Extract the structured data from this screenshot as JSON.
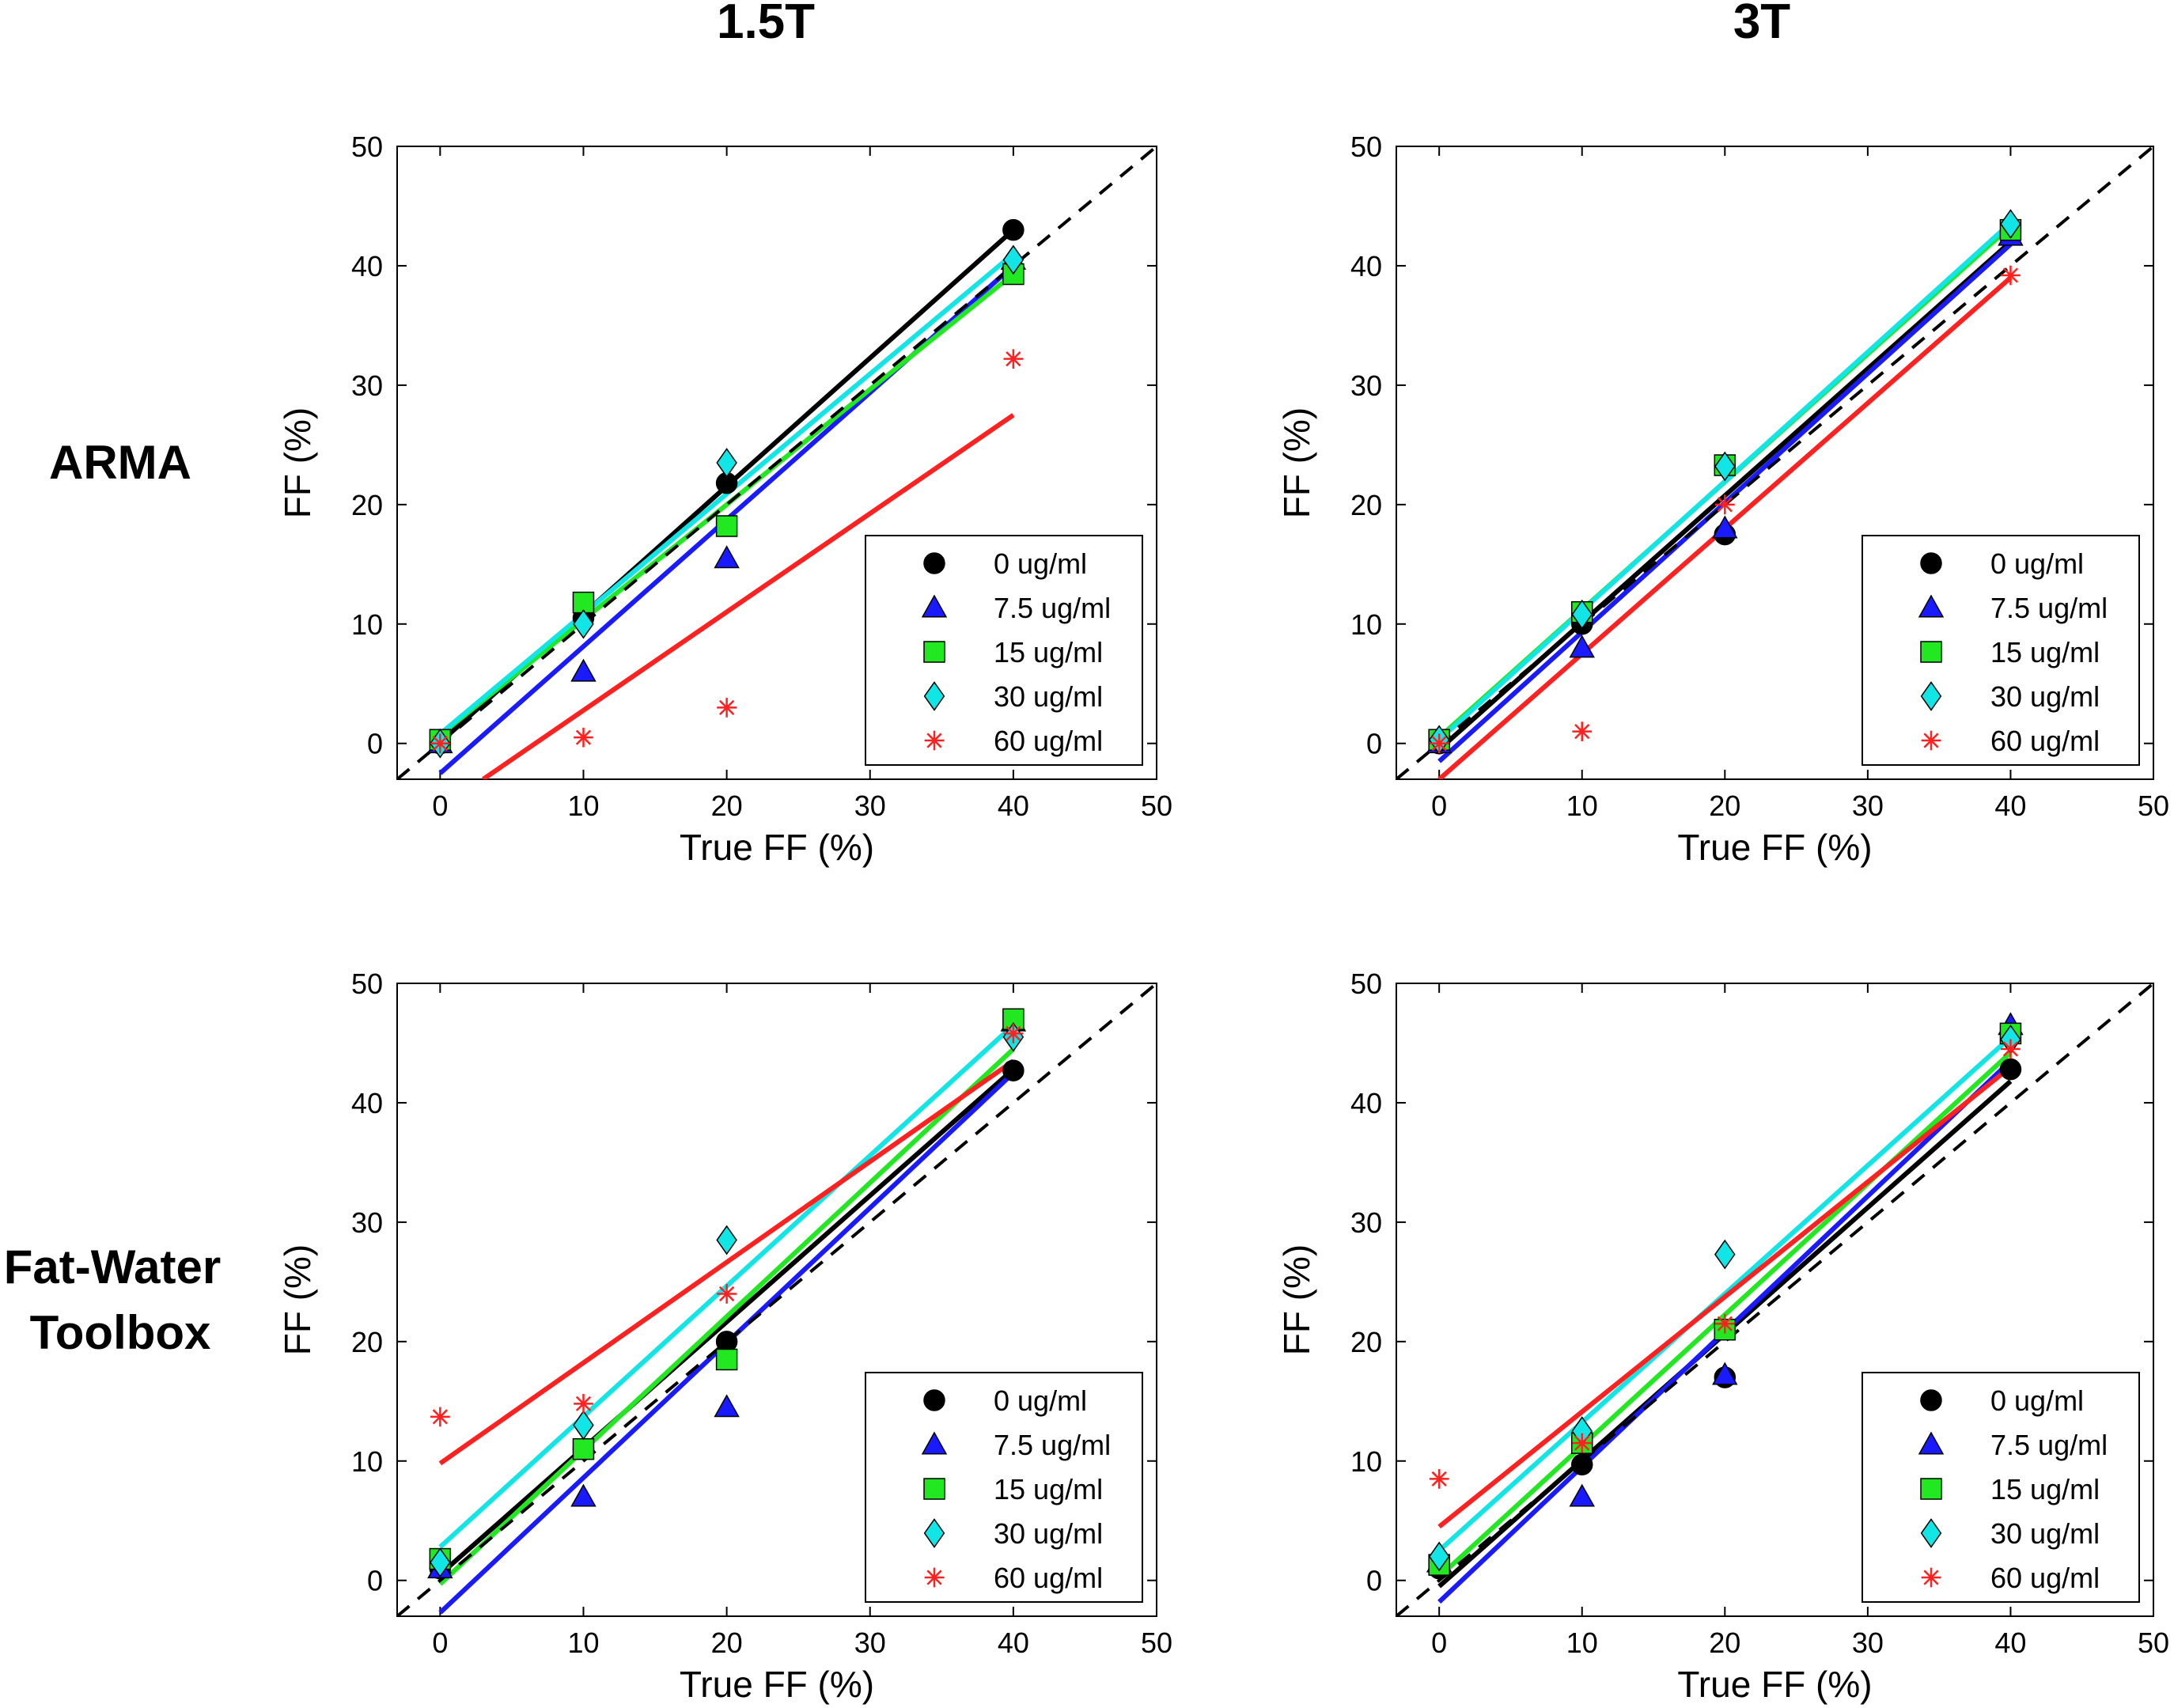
{
  "column_titles": [
    "1.5T",
    "3T"
  ],
  "row_titles": [
    [
      "ARMA"
    ],
    [
      "Fat-Water",
      "Toolbox"
    ]
  ],
  "colors": {
    "0 ug/ml": "#000000",
    "7.5 ug/ml": "#1a1aff",
    "15 ug/ml": "#22e822",
    "30 ug/ml": "#11e5e5",
    "60 ug/ml": "#ff2020",
    "identity": "#000000"
  },
  "chart_data": [
    {
      "id": "arma-1.5T",
      "type": "scatter",
      "row": "ARMA",
      "column": "1.5T",
      "title": "",
      "xlabel": "True FF (%)",
      "ylabel": "FF (%)",
      "xlim": [
        -3,
        50
      ],
      "ylim": [
        -3,
        50
      ],
      "xticks": [
        0,
        10,
        20,
        30,
        40,
        50
      ],
      "yticks": [
        0,
        10,
        20,
        30,
        40,
        50
      ],
      "identity_line": true,
      "legend_position": "bottom-right",
      "series": [
        {
          "name": "0 ug/ml",
          "marker": "circle",
          "x": [
            0,
            10,
            20,
            40
          ],
          "y": [
            0,
            10.5,
            21.8,
            43
          ],
          "fit": [
            [
              0,
              0.1
            ],
            [
              40,
              43
            ]
          ]
        },
        {
          "name": "7.5 ug/ml",
          "marker": "triangle",
          "x": [
            0,
            10,
            20,
            40
          ],
          "y": [
            0,
            6,
            15.5,
            40.5
          ],
          "fit": [
            [
              0,
              -2.5
            ],
            [
              40,
              40
            ]
          ]
        },
        {
          "name": "15 ug/ml",
          "marker": "square",
          "x": [
            0,
            10,
            20,
            40
          ],
          "y": [
            0.3,
            11.8,
            18.2,
            39.3
          ],
          "fit": [
            [
              0,
              0.7
            ],
            [
              40,
              39.3
            ]
          ]
        },
        {
          "name": "30 ug/ml",
          "marker": "diamond",
          "x": [
            0,
            10,
            20,
            40
          ],
          "y": [
            0,
            10,
            23.5,
            40.5
          ],
          "fit": [
            [
              0,
              0.8
            ],
            [
              40,
              41
            ]
          ]
        },
        {
          "name": "60 ug/ml",
          "marker": "star",
          "x": [
            0,
            10,
            20,
            40
          ],
          "y": [
            0,
            0.5,
            3,
            32.2
          ],
          "fit": [
            [
              3,
              -3
            ],
            [
              40,
              27.5
            ]
          ]
        }
      ]
    },
    {
      "id": "arma-3T",
      "type": "scatter",
      "row": "ARMA",
      "column": "3T",
      "title": "",
      "xlabel": "True FF (%)",
      "ylabel": "FF (%)",
      "xlim": [
        -3,
        50
      ],
      "ylim": [
        -3,
        50
      ],
      "xticks": [
        0,
        10,
        20,
        30,
        40,
        50
      ],
      "yticks": [
        0,
        10,
        20,
        30,
        40,
        50
      ],
      "identity_line": true,
      "legend_position": "bottom-right",
      "series": [
        {
          "name": "0 ug/ml",
          "marker": "circle",
          "x": [
            0,
            10,
            20,
            40
          ],
          "y": [
            0,
            10,
            17.5,
            42.8
          ],
          "fit": [
            [
              0,
              -0.5
            ],
            [
              40,
              42
            ]
          ]
        },
        {
          "name": "7.5 ug/ml",
          "marker": "triangle",
          "x": [
            0,
            10,
            20,
            40
          ],
          "y": [
            0,
            8,
            18,
            42.5
          ],
          "fit": [
            [
              0,
              -1.5
            ],
            [
              40,
              41.8
            ]
          ]
        },
        {
          "name": "15 ug/ml",
          "marker": "square",
          "x": [
            0,
            10,
            20,
            40
          ],
          "y": [
            0.3,
            11,
            23.3,
            43
          ],
          "fit": [
            [
              0,
              0.5
            ],
            [
              40,
              43.3
            ]
          ]
        },
        {
          "name": "30 ug/ml",
          "marker": "diamond",
          "x": [
            0,
            10,
            20,
            40
          ],
          "y": [
            0.3,
            10.8,
            23.2,
            43.5
          ],
          "fit": [
            [
              0,
              0.3
            ],
            [
              40,
              43.6
            ]
          ]
        },
        {
          "name": "60 ug/ml",
          "marker": "star",
          "x": [
            0,
            10,
            20,
            40
          ],
          "y": [
            0,
            1,
            20,
            39.2
          ],
          "fit": [
            [
              0,
              -3
            ],
            [
              40,
              39
            ]
          ]
        }
      ]
    },
    {
      "id": "fwt-1.5T",
      "type": "scatter",
      "row": "Fat-Water Toolbox",
      "column": "1.5T",
      "title": "",
      "xlabel": "True FF (%)",
      "ylabel": "FF (%)",
      "xlim": [
        -3,
        50
      ],
      "ylim": [
        -3,
        50
      ],
      "xticks": [
        0,
        10,
        20,
        30,
        40,
        50
      ],
      "yticks": [
        0,
        10,
        20,
        30,
        40,
        50
      ],
      "identity_line": true,
      "legend_position": "bottom-right",
      "series": [
        {
          "name": "0 ug/ml",
          "marker": "circle",
          "x": [
            0,
            10,
            20,
            40
          ],
          "y": [
            1,
            11,
            20,
            42.7
          ],
          "fit": [
            [
              0,
              0.5
            ],
            [
              40,
              42.8
            ]
          ]
        },
        {
          "name": "7.5 ug/ml",
          "marker": "triangle",
          "x": [
            0,
            10,
            20,
            40
          ],
          "y": [
            1,
            7,
            14.5,
            46.8
          ],
          "fit": [
            [
              0,
              -2.7
            ],
            [
              40,
              42.5
            ]
          ]
        },
        {
          "name": "15 ug/ml",
          "marker": "square",
          "x": [
            0,
            10,
            20,
            40
          ],
          "y": [
            1.8,
            11,
            18.5,
            47
          ],
          "fit": [
            [
              0,
              -0.3
            ],
            [
              40,
              44.5
            ]
          ]
        },
        {
          "name": "30 ug/ml",
          "marker": "diamond",
          "x": [
            0,
            10,
            20,
            40
          ],
          "y": [
            1.5,
            13,
            28.5,
            45.5
          ],
          "fit": [
            [
              0,
              2.8
            ],
            [
              40,
              46.5
            ]
          ]
        },
        {
          "name": "60 ug/ml",
          "marker": "star",
          "x": [
            0,
            10,
            20,
            40
          ],
          "y": [
            13.7,
            14.8,
            24,
            45.8
          ],
          "fit": [
            [
              0,
              9.8
            ],
            [
              40,
              43.5
            ]
          ]
        }
      ]
    },
    {
      "id": "fwt-3T",
      "type": "scatter",
      "row": "Fat-Water Toolbox",
      "column": "3T",
      "title": "",
      "xlabel": "True FF (%)",
      "ylabel": "FF (%)",
      "xlim": [
        -3,
        50
      ],
      "ylim": [
        -3,
        50
      ],
      "xticks": [
        0,
        10,
        20,
        30,
        40,
        50
      ],
      "yticks": [
        0,
        10,
        20,
        30,
        40,
        50
      ],
      "identity_line": true,
      "legend_position": "bottom-right",
      "series": [
        {
          "name": "0 ug/ml",
          "marker": "circle",
          "x": [
            0,
            10,
            20,
            40
          ],
          "y": [
            1,
            9.7,
            17,
            42.8
          ],
          "fit": [
            [
              0,
              -0.5
            ],
            [
              40,
              41.8
            ]
          ]
        },
        {
          "name": "7.5 ug/ml",
          "marker": "triangle",
          "x": [
            0,
            10,
            20,
            40
          ],
          "y": [
            1.5,
            7,
            17.2,
            46.5
          ],
          "fit": [
            [
              0,
              -1.8
            ],
            [
              40,
              43.5
            ]
          ]
        },
        {
          "name": "15 ug/ml",
          "marker": "square",
          "x": [
            0,
            10,
            20,
            40
          ],
          "y": [
            1.3,
            11.5,
            21,
            45.8
          ],
          "fit": [
            [
              0,
              0.3
            ],
            [
              40,
              44.2
            ]
          ]
        },
        {
          "name": "30 ug/ml",
          "marker": "diamond",
          "x": [
            0,
            10,
            20,
            40
          ],
          "y": [
            2,
            12.5,
            27.3,
            45.3
          ],
          "fit": [
            [
              0,
              2.5
            ],
            [
              40,
              45.5
            ]
          ]
        },
        {
          "name": "60 ug/ml",
          "marker": "star",
          "x": [
            0,
            10,
            20,
            40
          ],
          "y": [
            8.5,
            11.5,
            21.5,
            44.5
          ],
          "fit": [
            [
              0,
              4.5
            ],
            [
              40,
              43
            ]
          ]
        }
      ]
    }
  ]
}
